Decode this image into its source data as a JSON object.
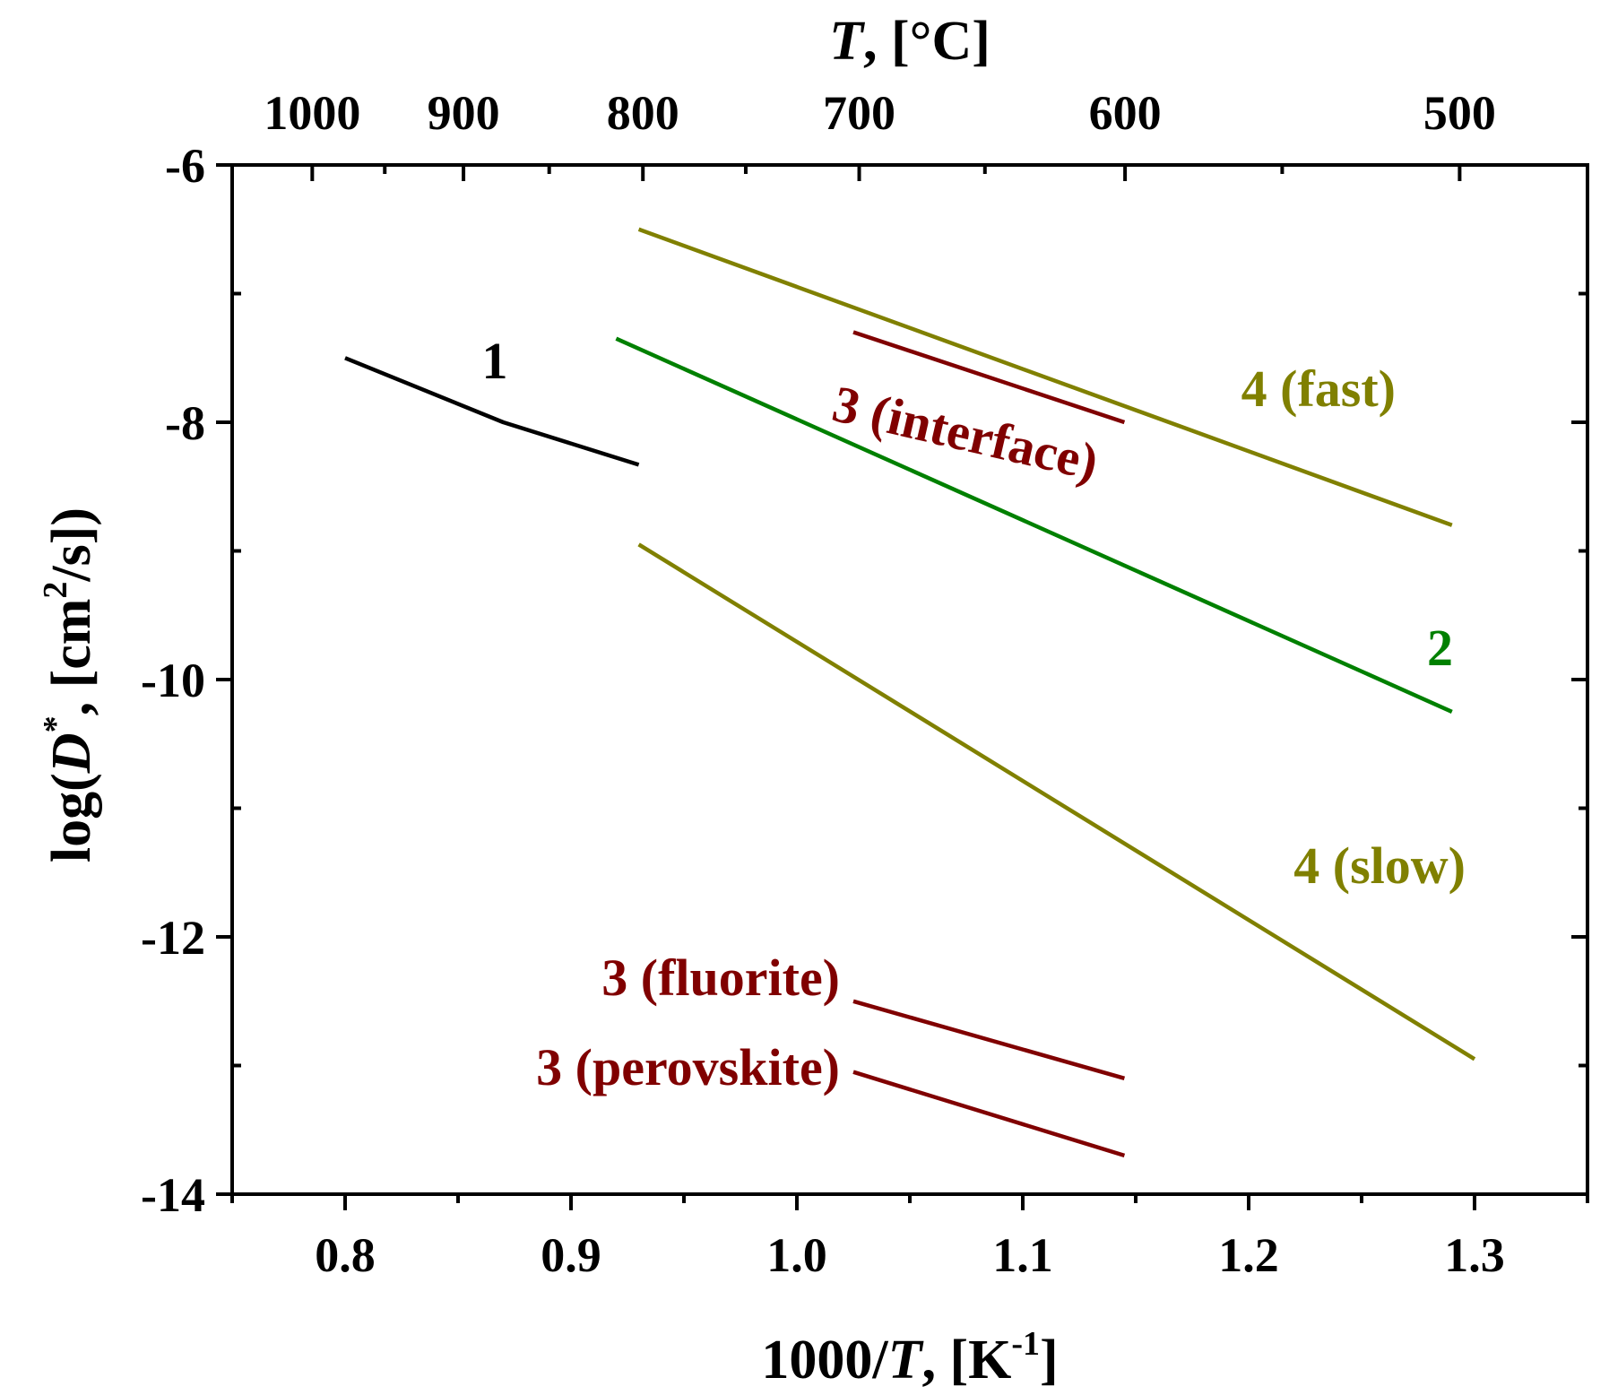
{
  "chart_data": {
    "type": "line",
    "xlabel": {
      "prefix": "1000/",
      "var": "T",
      "suffix": ", [K",
      "sup": "-1",
      "close": "]"
    },
    "ylabel": {
      "prefix": "log(",
      "var": "D",
      "sup": "*",
      "suffix": ", [cm",
      "sup2": "2",
      "close": "/s])"
    },
    "top_axis_label": {
      "var": "T",
      "suffix": ", [°C]"
    },
    "xlim": [
      0.75,
      1.35
    ],
    "ylim": [
      -14,
      -6
    ],
    "x_ticks": [
      {
        "value": 0.8,
        "label": "0.8"
      },
      {
        "value": 0.9,
        "label": "0.9"
      },
      {
        "value": 1.0,
        "label": "1.0"
      },
      {
        "value": 1.1,
        "label": "1.1"
      },
      {
        "value": 1.2,
        "label": "1.2"
      },
      {
        "value": 1.3,
        "label": "1.3"
      }
    ],
    "y_ticks": [
      {
        "value": -6,
        "label": "-6"
      },
      {
        "value": -8,
        "label": "-8"
      },
      {
        "value": -10,
        "label": "-10"
      },
      {
        "value": -12,
        "label": "-12"
      },
      {
        "value": -14,
        "label": "-14"
      }
    ],
    "top_ticks": [
      {
        "celsius": 1000,
        "label": "1000"
      },
      {
        "celsius": 900,
        "label": "900"
      },
      {
        "celsius": 800,
        "label": "800"
      },
      {
        "celsius": 700,
        "label": "700"
      },
      {
        "celsius": 600,
        "label": "600"
      },
      {
        "celsius": 500,
        "label": "500"
      }
    ],
    "series": [
      {
        "name": "1",
        "label": "1",
        "color": "#000000",
        "x": [
          0.8,
          0.87,
          0.93
        ],
        "y": [
          -7.5,
          -8.0,
          -8.33
        ]
      },
      {
        "name": "2",
        "label": "2",
        "color": "#008000",
        "x": [
          0.92,
          1.29
        ],
        "y": [
          -7.35,
          -10.25
        ]
      },
      {
        "name": "3 (interface)",
        "label": "3 (interface)",
        "color": "#800000",
        "x": [
          1.025,
          1.145
        ],
        "y": [
          -7.3,
          -8.0
        ]
      },
      {
        "name": "3 (fluorite)",
        "label": "3 (fluorite)",
        "color": "#800000",
        "x": [
          1.025,
          1.145
        ],
        "y": [
          -12.5,
          -13.1
        ]
      },
      {
        "name": "3 (perovskite)",
        "label": "3 (perovskite)",
        "color": "#800000",
        "x": [
          1.025,
          1.145
        ],
        "y": [
          -13.05,
          -13.7
        ]
      },
      {
        "name": "4 (fast)",
        "label": "4 (fast)",
        "color": "#808000",
        "x": [
          0.93,
          1.29
        ],
        "y": [
          -6.5,
          -8.8
        ]
      },
      {
        "name": "4 (slow)",
        "label": "4 (slow)",
        "color": "#808000",
        "x": [
          0.93,
          1.3
        ],
        "y": [
          -8.95,
          -12.95
        ]
      }
    ]
  }
}
